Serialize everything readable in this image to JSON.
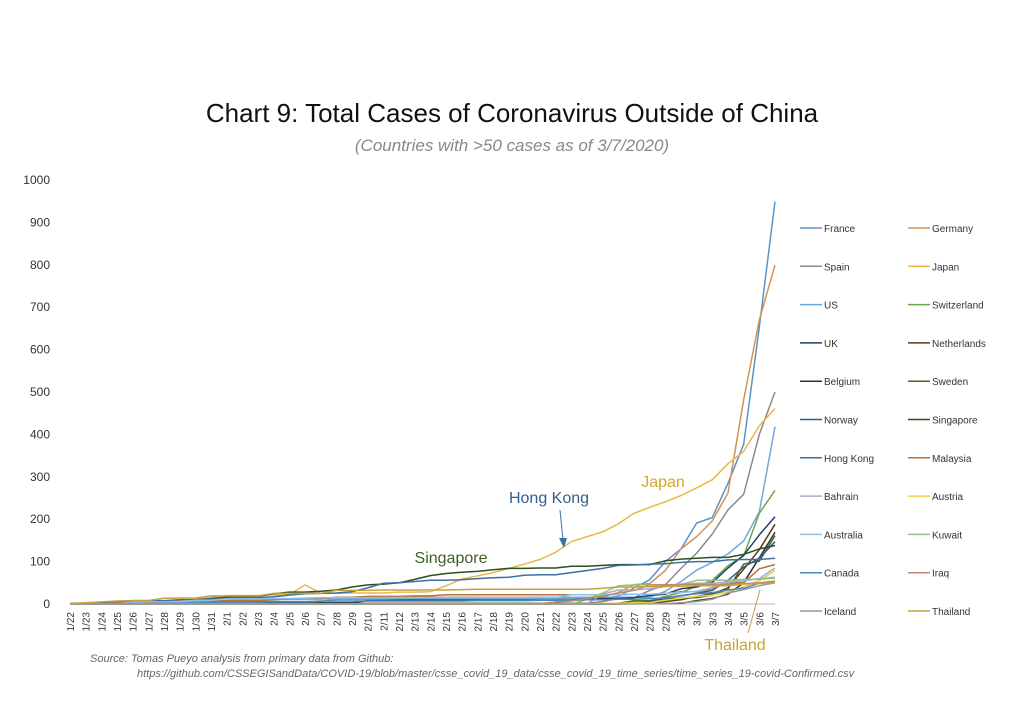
{
  "title": "Chart 9: Total Cases of Coronavirus Outside of China",
  "subtitle": "(Countries with >50 cases as of 3/7/2020)",
  "source": {
    "line1": "Source: Tomas Pueyo analysis from primary data from Github:",
    "line2": "https://github.com/CSSEGISandData/COVID-19/blob/master/csse_covid_19_data/csse_covid_19_time_series/time_series_19-covid-Confirmed.csv"
  },
  "chart_data": {
    "type": "line",
    "ylim": [
      0,
      1000
    ],
    "yticks": [
      0,
      100,
      200,
      300,
      400,
      500,
      600,
      700,
      800,
      900,
      1000
    ],
    "grid": false,
    "legend_position": "right",
    "categories": [
      "1/22",
      "1/23",
      "1/24",
      "1/25",
      "1/26",
      "1/27",
      "1/28",
      "1/29",
      "1/30",
      "1/31",
      "2/1",
      "2/2",
      "2/3",
      "2/4",
      "2/5",
      "2/6",
      "2/7",
      "2/8",
      "2/9",
      "2/10",
      "2/11",
      "2/12",
      "2/13",
      "2/14",
      "2/15",
      "2/16",
      "2/17",
      "2/18",
      "2/19",
      "2/20",
      "2/21",
      "2/22",
      "2/23",
      "2/24",
      "2/25",
      "2/26",
      "2/27",
      "2/28",
      "2/29",
      "3/1",
      "3/2",
      "3/3",
      "3/4",
      "3/5",
      "3/6",
      "3/7"
    ],
    "annotations": [
      {
        "text": "Japan",
        "series": "Japan",
        "color": "#d9a528"
      },
      {
        "text": "Hong Kong",
        "series": "Hong Kong",
        "color": "#2f5f8f"
      },
      {
        "text": "Singapore",
        "series": "Singapore",
        "color": "#3f5f2a"
      },
      {
        "text": "Thailand",
        "series": "Thailand",
        "color": "#c9a52e"
      }
    ],
    "series": [
      {
        "name": "France",
        "color": "#5b93c7",
        "values": [
          0,
          2,
          3,
          3,
          3,
          4,
          5,
          5,
          6,
          6,
          6,
          6,
          6,
          6,
          6,
          6,
          6,
          11,
          11,
          11,
          11,
          11,
          11,
          11,
          12,
          12,
          12,
          12,
          12,
          12,
          12,
          12,
          12,
          12,
          14,
          18,
          38,
          57,
          100,
          130,
          191,
          204,
          285,
          377,
          653,
          949
        ]
      },
      {
        "name": "Germany",
        "color": "#d49254",
        "values": [
          0,
          0,
          0,
          0,
          0,
          1,
          4,
          4,
          4,
          5,
          8,
          10,
          12,
          12,
          12,
          12,
          13,
          13,
          14,
          14,
          16,
          16,
          16,
          16,
          16,
          16,
          16,
          16,
          16,
          16,
          16,
          16,
          16,
          16,
          17,
          27,
          46,
          48,
          79,
          130,
          159,
          196,
          262,
          482,
          670,
          799
        ]
      },
      {
        "name": "Spain",
        "color": "#8a8a8a",
        "values": [
          0,
          0,
          0,
          0,
          0,
          0,
          0,
          0,
          0,
          0,
          1,
          1,
          1,
          1,
          1,
          1,
          1,
          1,
          2,
          2,
          2,
          2,
          2,
          2,
          2,
          2,
          2,
          2,
          2,
          2,
          2,
          2,
          2,
          2,
          6,
          13,
          15,
          32,
          45,
          84,
          120,
          165,
          222,
          259,
          400,
          500
        ]
      },
      {
        "name": "Japan",
        "color": "#e8b84a",
        "values": [
          2,
          1,
          2,
          2,
          4,
          4,
          7,
          7,
          11,
          15,
          20,
          20,
          20,
          22,
          22,
          45,
          25,
          25,
          26,
          26,
          26,
          28,
          28,
          29,
          43,
          59,
          66,
          74,
          84,
          94,
          105,
          122,
          147,
          159,
          170,
          189,
          214,
          228,
          241,
          256,
          274,
          293,
          331,
          360,
          420,
          461
        ]
      },
      {
        "name": "US",
        "color": "#6fa8dc",
        "values": [
          1,
          1,
          2,
          2,
          5,
          5,
          5,
          5,
          5,
          6,
          8,
          8,
          11,
          11,
          11,
          12,
          12,
          12,
          12,
          12,
          13,
          13,
          14,
          14,
          14,
          14,
          14,
          14,
          14,
          14,
          16,
          16,
          16,
          16,
          16,
          16,
          16,
          16,
          30,
          53,
          80,
          98,
          118,
          149,
          217,
          418
        ]
      },
      {
        "name": "Switzerland",
        "color": "#6aa84f",
        "values": [
          0,
          0,
          0,
          0,
          0,
          0,
          0,
          0,
          0,
          0,
          0,
          0,
          0,
          0,
          0,
          0,
          0,
          0,
          0,
          0,
          0,
          0,
          0,
          0,
          0,
          0,
          0,
          0,
          0,
          0,
          0,
          0,
          0,
          0,
          1,
          1,
          8,
          8,
          18,
          27,
          42,
          56,
          90,
          114,
          214,
          268
        ]
      },
      {
        "name": "UK",
        "color": "#1f3f6f",
        "values": [
          0,
          0,
          0,
          0,
          0,
          0,
          0,
          0,
          0,
          2,
          2,
          2,
          2,
          2,
          2,
          2,
          3,
          3,
          3,
          8,
          8,
          9,
          9,
          9,
          9,
          9,
          9,
          9,
          9,
          9,
          9,
          9,
          9,
          13,
          13,
          13,
          15,
          20,
          23,
          36,
          40,
          51,
          85,
          115,
          163,
          206
        ]
      },
      {
        "name": "Netherlands",
        "color": "#5a3a1a",
        "values": [
          0,
          0,
          0,
          0,
          0,
          0,
          0,
          0,
          0,
          0,
          0,
          0,
          0,
          0,
          0,
          0,
          0,
          0,
          0,
          0,
          0,
          0,
          0,
          0,
          0,
          0,
          0,
          0,
          0,
          0,
          0,
          0,
          0,
          0,
          0,
          0,
          1,
          1,
          6,
          10,
          18,
          24,
          38,
          82,
          128,
          188
        ]
      },
      {
        "name": "Belgium",
        "color": "#333333",
        "values": [
          0,
          0,
          0,
          0,
          0,
          0,
          0,
          0,
          0,
          0,
          0,
          0,
          0,
          0,
          1,
          1,
          1,
          1,
          1,
          1,
          1,
          1,
          1,
          1,
          1,
          1,
          1,
          1,
          1,
          1,
          1,
          1,
          1,
          1,
          1,
          1,
          1,
          1,
          1,
          2,
          8,
          13,
          23,
          50,
          109,
          169
        ]
      },
      {
        "name": "Sweden",
        "color": "#4a6a1a",
        "values": [
          0,
          0,
          0,
          0,
          0,
          0,
          0,
          0,
          0,
          1,
          1,
          1,
          1,
          1,
          1,
          1,
          1,
          1,
          1,
          1,
          1,
          1,
          1,
          1,
          1,
          1,
          1,
          1,
          1,
          1,
          1,
          1,
          1,
          1,
          1,
          2,
          7,
          7,
          12,
          14,
          15,
          21,
          35,
          94,
          101,
          161
        ]
      },
      {
        "name": "Norway",
        "color": "#2e5d8f",
        "values": [
          0,
          0,
          0,
          0,
          0,
          0,
          0,
          0,
          0,
          0,
          0,
          0,
          0,
          0,
          0,
          0,
          0,
          0,
          0,
          0,
          0,
          0,
          0,
          0,
          0,
          0,
          0,
          0,
          0,
          0,
          0,
          0,
          0,
          0,
          0,
          1,
          1,
          6,
          15,
          19,
          25,
          32,
          56,
          87,
          108,
          147
        ]
      },
      {
        "name": "Singapore",
        "color": "#2f4f1f",
        "values": [
          0,
          1,
          3,
          3,
          4,
          5,
          7,
          7,
          10,
          13,
          16,
          18,
          18,
          24,
          28,
          28,
          30,
          33,
          40,
          45,
          47,
          50,
          58,
          67,
          72,
          75,
          77,
          81,
          84,
          84,
          85,
          85,
          89,
          89,
          91,
          93,
          93,
          93,
          102,
          106,
          108,
          110,
          110,
          117,
          130,
          138
        ]
      },
      {
        "name": "Hong Kong",
        "color": "#3d6fa3",
        "values": [
          0,
          0,
          2,
          5,
          8,
          8,
          8,
          10,
          10,
          12,
          13,
          15,
          15,
          17,
          21,
          24,
          25,
          26,
          29,
          38,
          49,
          50,
          53,
          56,
          56,
          57,
          60,
          62,
          63,
          68,
          69,
          69,
          74,
          79,
          84,
          91,
          92,
          94,
          95,
          98,
          100,
          100,
          104,
          105,
          105,
          108
        ]
      },
      {
        "name": "Malaysia",
        "color": "#b8733a",
        "values": [
          0,
          0,
          0,
          3,
          4,
          4,
          4,
          7,
          8,
          8,
          8,
          8,
          8,
          10,
          12,
          12,
          12,
          16,
          16,
          18,
          18,
          18,
          19,
          19,
          22,
          22,
          22,
          22,
          22,
          22,
          22,
          22,
          22,
          22,
          22,
          22,
          23,
          23,
          25,
          29,
          29,
          36,
          50,
          50,
          83,
          93
        ]
      },
      {
        "name": "Bahrain",
        "color": "#a9a9c9",
        "values": [
          0,
          0,
          0,
          0,
          0,
          0,
          0,
          0,
          0,
          0,
          0,
          0,
          0,
          0,
          0,
          0,
          0,
          0,
          0,
          0,
          0,
          0,
          0,
          0,
          0,
          0,
          0,
          0,
          0,
          0,
          0,
          0,
          0,
          1,
          23,
          33,
          33,
          36,
          41,
          47,
          49,
          49,
          52,
          55,
          60,
          85
        ]
      },
      {
        "name": "Austria",
        "color": "#f0d040",
        "values": [
          0,
          0,
          0,
          0,
          0,
          0,
          0,
          0,
          0,
          0,
          0,
          0,
          0,
          0,
          0,
          0,
          0,
          0,
          0,
          0,
          0,
          0,
          0,
          0,
          0,
          0,
          0,
          0,
          0,
          0,
          0,
          0,
          0,
          0,
          2,
          2,
          3,
          3,
          9,
          14,
          18,
          21,
          29,
          41,
          55,
          79
        ]
      },
      {
        "name": "Australia",
        "color": "#8fc0e8",
        "values": [
          0,
          0,
          0,
          0,
          4,
          5,
          5,
          6,
          9,
          9,
          12,
          12,
          12,
          13,
          13,
          14,
          15,
          15,
          15,
          15,
          15,
          15,
          15,
          15,
          15,
          15,
          15,
          15,
          15,
          15,
          15,
          15,
          22,
          22,
          22,
          22,
          23,
          23,
          25,
          27,
          30,
          39,
          52,
          55,
          60,
          63
        ]
      },
      {
        "name": "Kuwait",
        "color": "#93c47d",
        "values": [
          0,
          0,
          0,
          0,
          0,
          0,
          0,
          0,
          0,
          0,
          0,
          0,
          0,
          0,
          0,
          0,
          0,
          0,
          0,
          0,
          0,
          0,
          0,
          0,
          0,
          0,
          0,
          0,
          0,
          0,
          0,
          0,
          0,
          11,
          26,
          43,
          45,
          45,
          45,
          46,
          56,
          56,
          56,
          58,
          58,
          61
        ]
      },
      {
        "name": "Canada",
        "color": "#4a86b8",
        "values": [
          0,
          0,
          0,
          0,
          1,
          1,
          2,
          2,
          2,
          4,
          4,
          4,
          4,
          5,
          5,
          5,
          7,
          7,
          7,
          7,
          7,
          7,
          7,
          7,
          7,
          7,
          8,
          8,
          8,
          8,
          9,
          9,
          9,
          10,
          10,
          11,
          11,
          13,
          14,
          20,
          24,
          27,
          33,
          37,
          49,
          54
        ]
      },
      {
        "name": "Iraq",
        "color": "#c08a6a",
        "values": [
          0,
          0,
          0,
          0,
          0,
          0,
          0,
          0,
          0,
          0,
          0,
          0,
          0,
          0,
          0,
          0,
          0,
          0,
          0,
          0,
          0,
          0,
          0,
          0,
          0,
          0,
          0,
          0,
          0,
          1,
          1,
          5,
          7,
          13,
          19,
          26,
          32,
          45,
          45,
          46,
          46,
          46,
          46,
          48,
          50,
          54
        ]
      },
      {
        "name": "Iceland",
        "color": "#999999",
        "values": [
          0,
          0,
          0,
          0,
          0,
          0,
          0,
          0,
          0,
          0,
          0,
          0,
          0,
          0,
          0,
          0,
          0,
          0,
          0,
          0,
          0,
          0,
          0,
          0,
          0,
          0,
          0,
          0,
          0,
          0,
          0,
          0,
          0,
          0,
          0,
          0,
          0,
          1,
          1,
          3,
          6,
          11,
          26,
          34,
          43,
          50
        ]
      },
      {
        "name": "Thailand",
        "color": "#c8a040",
        "values": [
          2,
          3,
          5,
          7,
          8,
          8,
          14,
          14,
          14,
          19,
          19,
          19,
          19,
          25,
          25,
          25,
          25,
          32,
          32,
          32,
          33,
          33,
          33,
          33,
          33,
          34,
          35,
          35,
          35,
          35,
          35,
          35,
          35,
          35,
          37,
          40,
          40,
          41,
          42,
          42,
          43,
          43,
          43,
          47,
          48,
          50
        ]
      }
    ]
  }
}
